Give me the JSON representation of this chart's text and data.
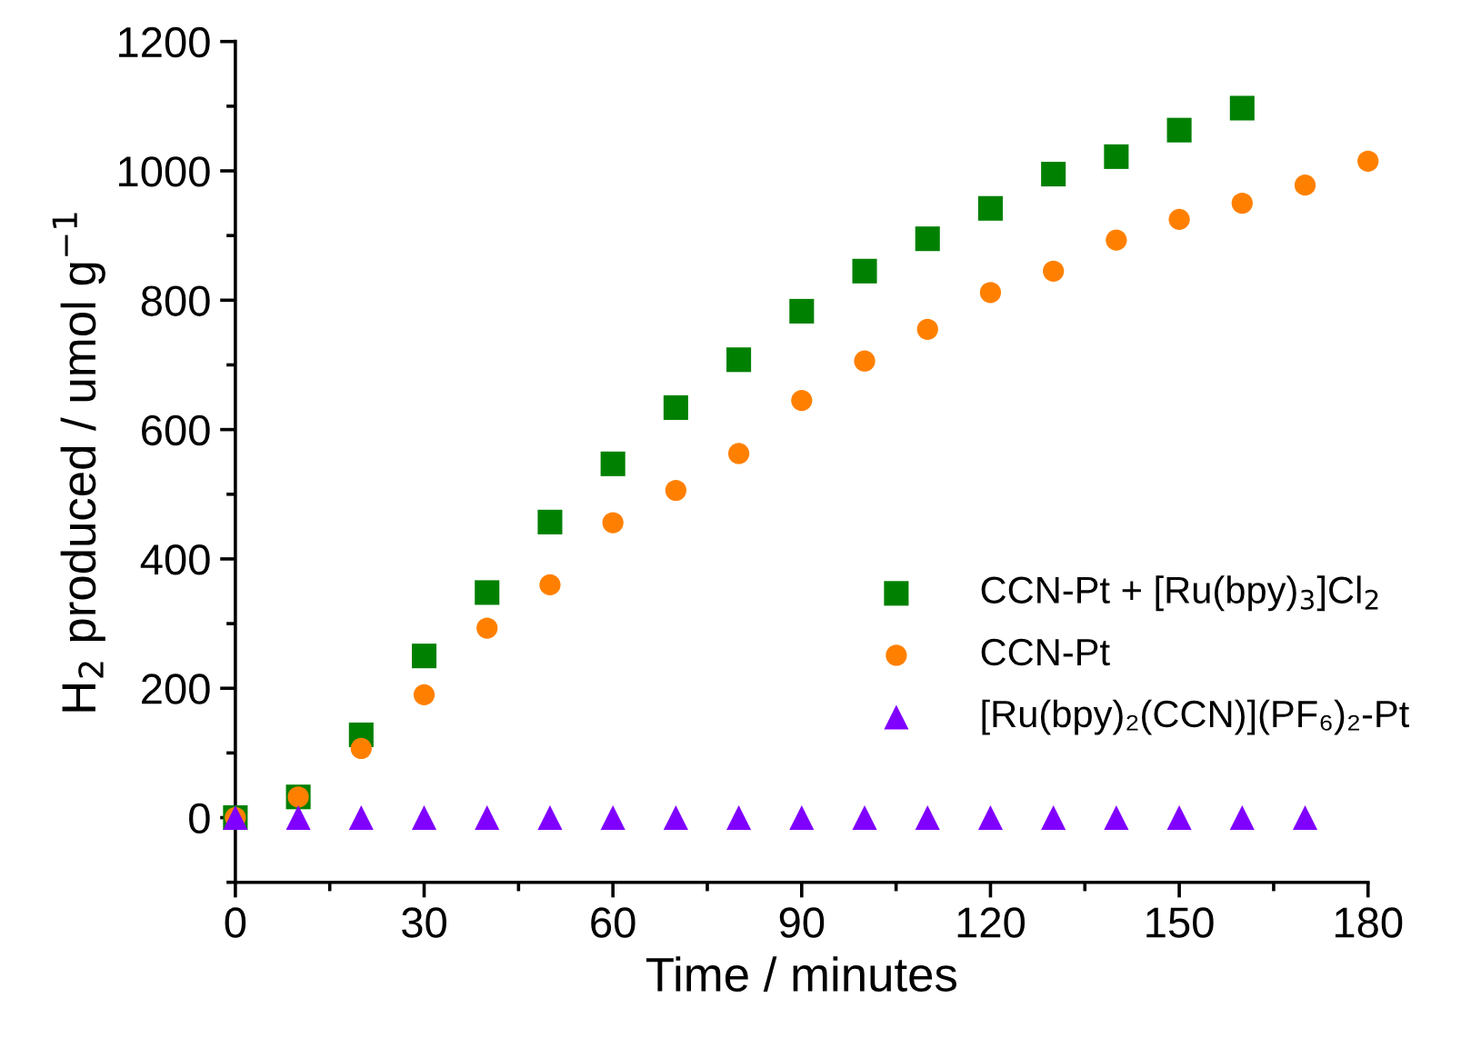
{
  "chart_data": {
    "type": "scatter",
    "xlabel": "Time / minutes",
    "ylabel": "H$_{2}$ produced / umol g$^{−1}$",
    "xlim": [
      0,
      180
    ],
    "xticks": [
      0,
      30,
      60,
      90,
      120,
      150,
      180
    ],
    "ylim": [
      -100,
      1200
    ],
    "yticks": [
      0,
      200,
      400,
      600,
      800,
      1000,
      1200
    ],
    "grid": false,
    "legend": "right",
    "series": [
      {
        "name": "CCN-Pt + [Ru(bpy)$_{3}$]Cl$_{2}$",
        "color": "#008000",
        "marker": "square",
        "x": [
          0,
          10,
          20,
          30,
          40,
          50,
          60,
          70,
          80,
          90,
          100,
          110,
          120,
          130,
          140,
          150,
          160
        ],
        "values": [
          0,
          32,
          128,
          250,
          348,
          457,
          547,
          634,
          708,
          783,
          845,
          895,
          942,
          995,
          1022,
          1063,
          1097
        ]
      },
      {
        "name": "CCN-Pt",
        "color": "#ff8000",
        "marker": "circle",
        "x": [
          0,
          10,
          20,
          30,
          40,
          50,
          60,
          70,
          80,
          90,
          100,
          110,
          120,
          130,
          140,
          150,
          160,
          170,
          180
        ],
        "values": [
          0,
          32,
          107,
          190,
          293,
          360,
          456,
          506,
          563,
          645,
          706,
          755,
          812,
          845,
          893,
          925,
          950,
          978,
          1015
        ]
      },
      {
        "name": "[Ru(bpy)₂(CCN)](PF₆)₂-Pt",
        "color": "#8000ff",
        "marker": "triangle",
        "x": [
          0,
          10,
          20,
          30,
          40,
          50,
          60,
          70,
          80,
          90,
          100,
          110,
          120,
          130,
          140,
          150,
          160,
          170
        ],
        "values": [
          0,
          0,
          0,
          0,
          0,
          0,
          0,
          0,
          0,
          0,
          0,
          0,
          0,
          0,
          0,
          0,
          0,
          0
        ]
      }
    ]
  }
}
